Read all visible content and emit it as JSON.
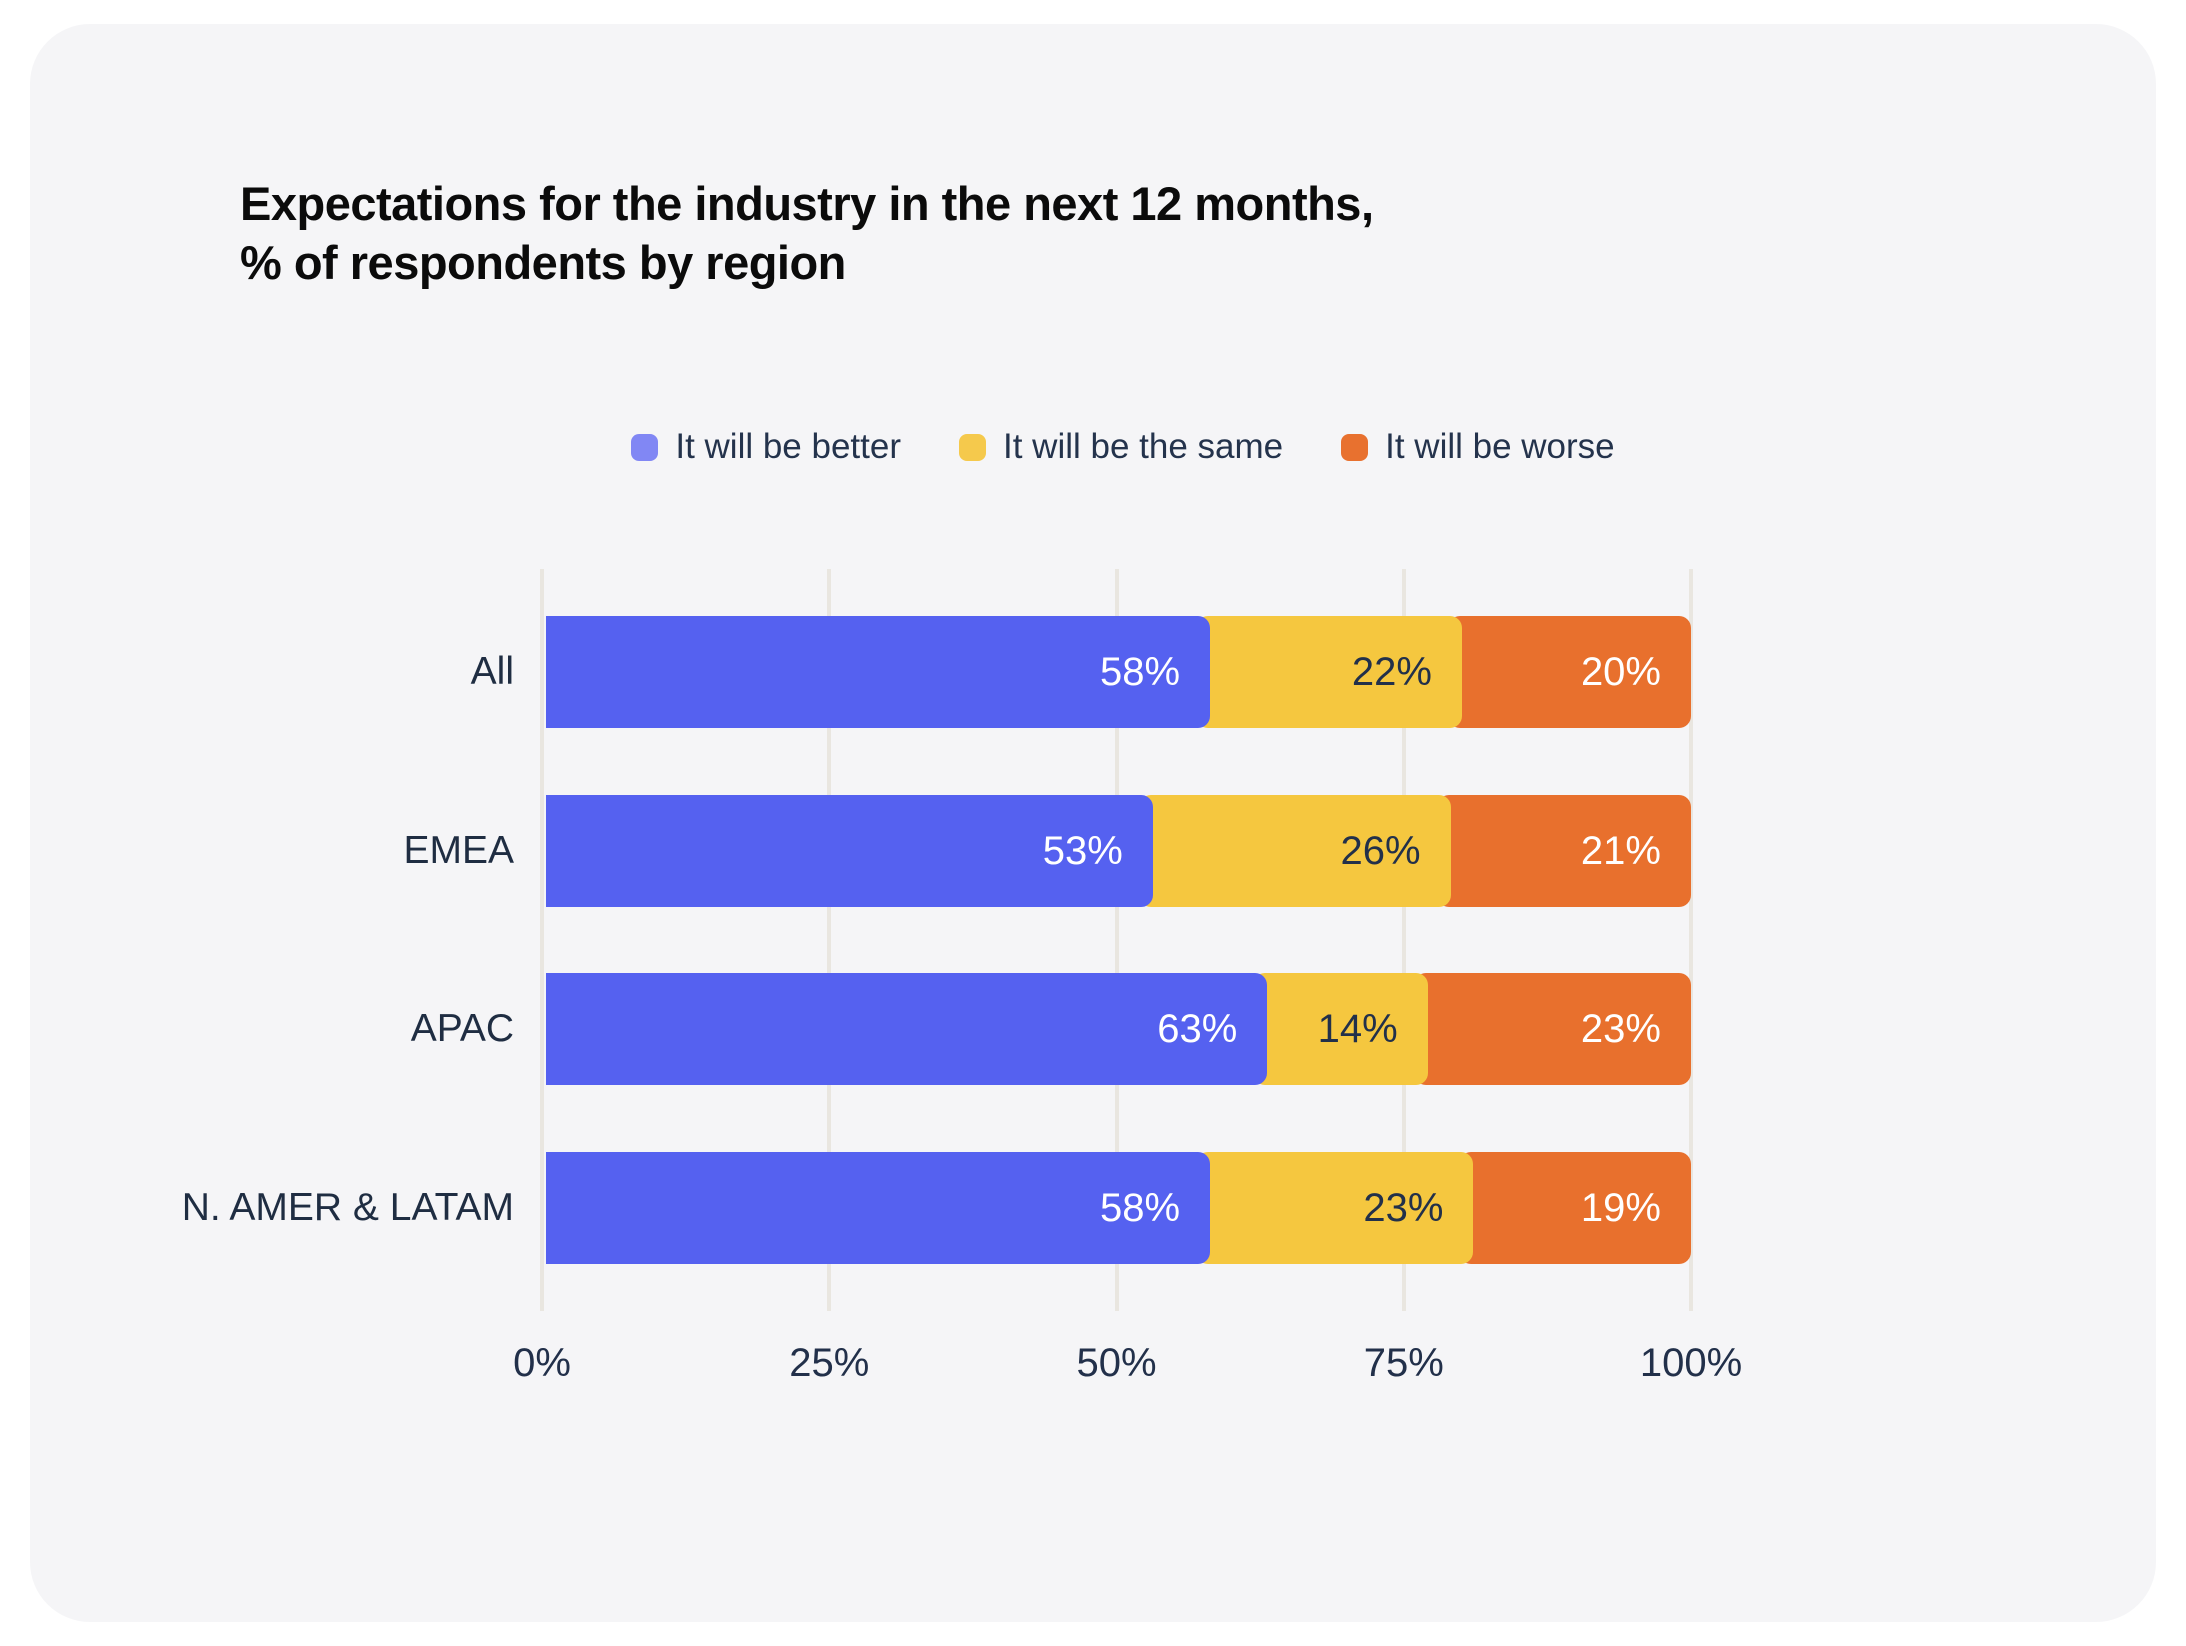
{
  "title": {
    "line1": "Expectations for the industry in the next 12 months,",
    "line2": "% of respondents by region"
  },
  "legend": [
    {
      "label": "It will be better",
      "swatch_color": "#8187f4"
    },
    {
      "label": "It will be the same",
      "swatch_color": "#f5c94c"
    },
    {
      "label": "It will be worse",
      "swatch_color": "#e8712f"
    }
  ],
  "chart_data": {
    "type": "bar",
    "stacked": true,
    "orientation": "horizontal",
    "title": "Expectations for the industry in the next 12 months, % of respondents by region",
    "categories": [
      "All",
      "EMEA",
      "APAC",
      "N. AMER & LATAM"
    ],
    "series": [
      {
        "name": "It will be better",
        "color": "#5561f0",
        "label_color": "#ffffff",
        "values": [
          58,
          53,
          63,
          58
        ]
      },
      {
        "name": "It will be the same",
        "color": "#f5c73f",
        "label_color": "#22304a",
        "values": [
          22,
          26,
          14,
          23
        ]
      },
      {
        "name": "It will be worse",
        "color": "#e8702d",
        "label_color": "#ffffff",
        "values": [
          20,
          21,
          23,
          19
        ]
      }
    ],
    "x_ticks": [
      "0%",
      "25%",
      "50%",
      "75%",
      "100%"
    ],
    "xlim": [
      0,
      100
    ],
    "value_suffix": "%",
    "grid": true,
    "legend_position": "top"
  },
  "colors": {
    "page_background": "#ffffff",
    "card_background": "#f5f5f7",
    "gridline": "#e9e6e0",
    "title_text": "#0b0b0b",
    "axis_text": "#22304a",
    "category_text": "#1f2d42",
    "legend_text": "#24334c"
  }
}
